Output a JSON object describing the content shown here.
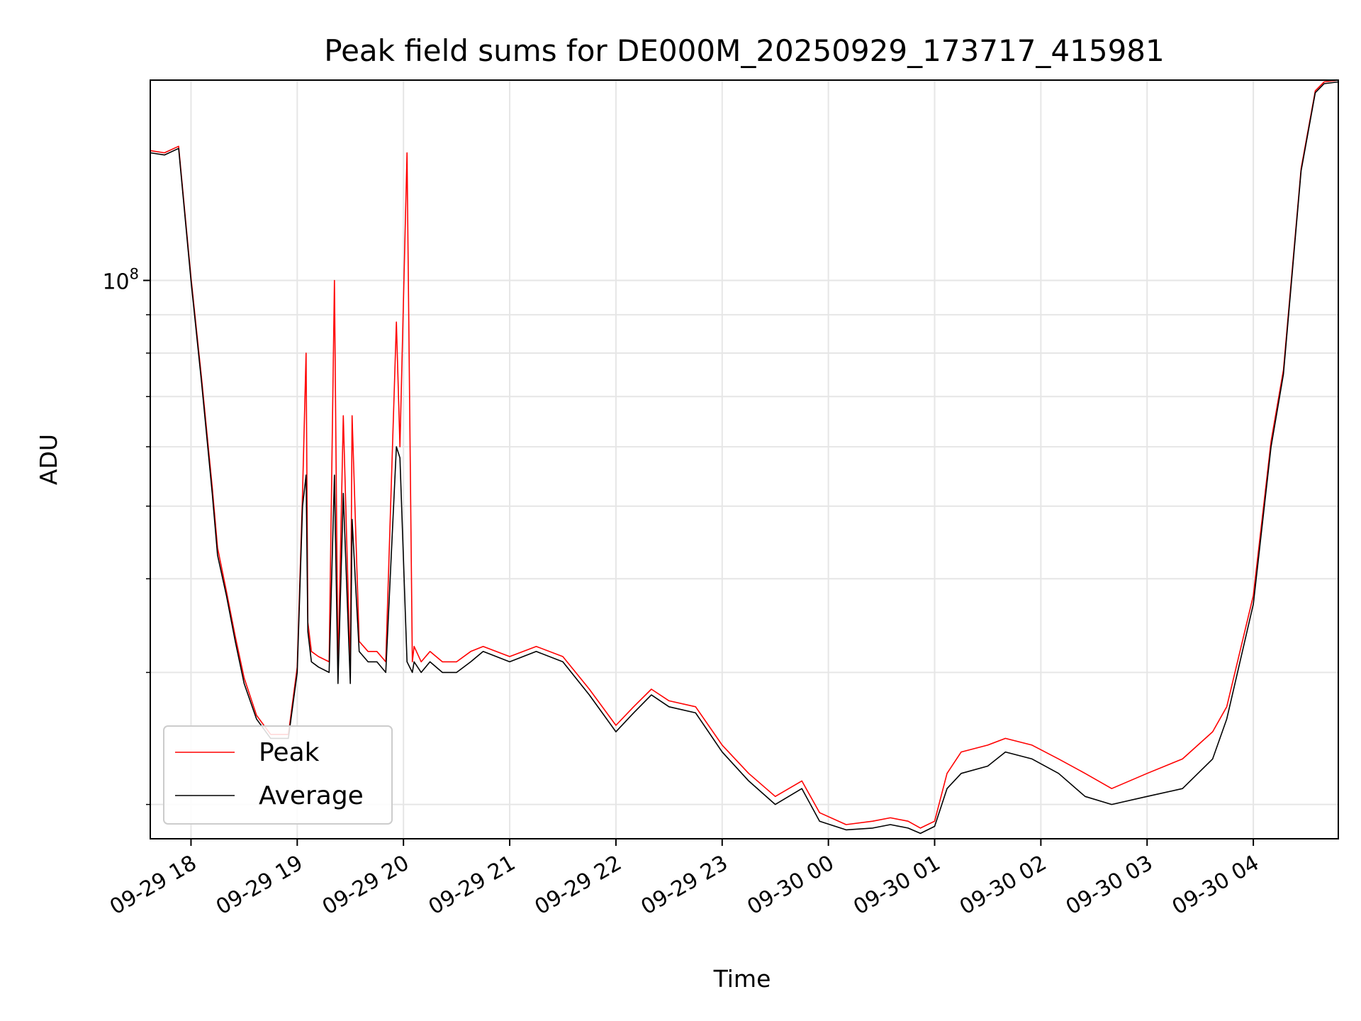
{
  "chart_data": {
    "type": "line",
    "title": "Peak field sums for DE000M_20250929_173717_415981",
    "xlabel": "Time",
    "ylabel": "ADU",
    "x_range": [
      "2025-09-29 17:37",
      "2025-09-30 04:48"
    ],
    "ylim": [
      18000000,
      185000000
    ],
    "yscale": "log",
    "y_major_tick_label": "10^8",
    "grid": true,
    "legend_position": "lower-left",
    "x_tick_labels": [
      "09-29 18",
      "09-29 19",
      "09-29 20",
      "09-29 21",
      "09-29 22",
      "09-29 23",
      "09-30 00",
      "09-30 01",
      "09-30 02",
      "09-30 03",
      "09-30 04"
    ],
    "x_ticks": [
      "2025-09-29 18:00",
      "2025-09-29 19:00",
      "2025-09-29 20:00",
      "2025-09-29 21:00",
      "2025-09-29 22:00",
      "2025-09-29 23:00",
      "2025-09-30 00:00",
      "2025-09-30 01:00",
      "2025-09-30 02:00",
      "2025-09-30 03:00",
      "2025-09-30 04:00"
    ],
    "series": [
      {
        "name": "Average",
        "color": "#000000",
        "x": [
          "2025-09-29 17:37",
          "2025-09-29 17:45",
          "2025-09-29 17:53",
          "2025-09-29 18:00",
          "2025-09-29 18:06",
          "2025-09-29 18:12",
          "2025-09-29 18:15",
          "2025-09-29 18:20",
          "2025-09-29 18:25",
          "2025-09-29 18:30",
          "2025-09-29 18:37",
          "2025-09-29 18:45",
          "2025-09-29 18:55",
          "2025-09-29 19:00",
          "2025-09-29 19:03",
          "2025-09-29 19:05",
          "2025-09-29 19:06",
          "2025-09-29 19:08",
          "2025-09-29 19:12",
          "2025-09-29 19:18",
          "2025-09-29 19:21",
          "2025-09-29 19:23",
          "2025-09-29 19:26",
          "2025-09-29 19:30",
          "2025-09-29 19:31",
          "2025-09-29 19:35",
          "2025-09-29 19:40",
          "2025-09-29 19:45",
          "2025-09-29 19:50",
          "2025-09-29 19:56",
          "2025-09-29 19:58",
          "2025-09-29 20:02",
          "2025-09-29 20:05",
          "2025-09-29 20:06",
          "2025-09-29 20:10",
          "2025-09-29 20:15",
          "2025-09-29 20:22",
          "2025-09-29 20:30",
          "2025-09-29 20:38",
          "2025-09-29 20:45",
          "2025-09-29 21:00",
          "2025-09-29 21:15",
          "2025-09-29 21:30",
          "2025-09-29 21:45",
          "2025-09-29 22:00",
          "2025-09-29 22:10",
          "2025-09-29 22:20",
          "2025-09-29 22:30",
          "2025-09-29 22:45",
          "2025-09-29 23:00",
          "2025-09-29 23:15",
          "2025-09-29 23:30",
          "2025-09-29 23:45",
          "2025-09-29 23:55",
          "2025-09-30 00:10",
          "2025-09-30 00:25",
          "2025-09-30 00:35",
          "2025-09-30 00:45",
          "2025-09-30 00:52",
          "2025-09-30 01:00",
          "2025-09-30 01:07",
          "2025-09-30 01:15",
          "2025-09-30 01:30",
          "2025-09-30 01:40",
          "2025-09-30 01:55",
          "2025-09-30 02:10",
          "2025-09-30 02:25",
          "2025-09-30 02:40",
          "2025-09-30 03:00",
          "2025-09-30 03:20",
          "2025-09-30 03:37",
          "2025-09-30 03:45",
          "2025-09-30 04:00",
          "2025-09-30 04:10",
          "2025-09-30 04:17",
          "2025-09-30 04:27",
          "2025-09-30 04:35",
          "2025-09-30 04:40",
          "2025-09-30 04:48"
        ],
        "values": [
          148000000,
          147000000,
          150000000,
          100000000,
          73000000,
          52000000,
          43000000,
          38000000,
          33000000,
          29000000,
          26000000,
          24500000,
          24500000,
          30000000,
          50000000,
          55000000,
          34000000,
          31000000,
          30500000,
          30000000,
          55000000,
          29000000,
          52000000,
          29000000,
          48000000,
          32000000,
          31000000,
          31000000,
          30000000,
          60000000,
          58000000,
          31000000,
          30000000,
          31000000,
          30000000,
          31000000,
          30000000,
          30000000,
          31000000,
          32000000,
          31000000,
          32000000,
          31000000,
          28000000,
          25000000,
          26500000,
          28000000,
          27000000,
          26500000,
          23500000,
          21500000,
          20000000,
          21000000,
          19000000,
          18500000,
          18600000,
          18800000,
          18600000,
          18300000,
          18700000,
          21000000,
          22000000,
          22500000,
          23500000,
          23000000,
          22000000,
          20500000,
          20000000,
          20500000,
          21000000,
          23000000,
          26000000,
          37000000,
          60000000,
          75000000,
          140000000,
          178000000,
          183000000,
          184000000
        ]
      },
      {
        "name": "Peak",
        "color": "#ff0000",
        "x": [
          "2025-09-29 17:37",
          "2025-09-29 17:45",
          "2025-09-29 17:53",
          "2025-09-29 18:00",
          "2025-09-29 18:06",
          "2025-09-29 18:12",
          "2025-09-29 18:15",
          "2025-09-29 18:20",
          "2025-09-29 18:25",
          "2025-09-29 18:30",
          "2025-09-29 18:37",
          "2025-09-29 18:45",
          "2025-09-29 18:55",
          "2025-09-29 19:00",
          "2025-09-29 19:03",
          "2025-09-29 19:05",
          "2025-09-29 19:06",
          "2025-09-29 19:08",
          "2025-09-29 19:12",
          "2025-09-29 19:18",
          "2025-09-29 19:21",
          "2025-09-29 19:23",
          "2025-09-29 19:26",
          "2025-09-29 19:30",
          "2025-09-29 19:31",
          "2025-09-29 19:35",
          "2025-09-29 19:40",
          "2025-09-29 19:45",
          "2025-09-29 19:50",
          "2025-09-29 19:56",
          "2025-09-29 19:58",
          "2025-09-29 20:02",
          "2025-09-29 20:05",
          "2025-09-29 20:06",
          "2025-09-29 20:10",
          "2025-09-29 20:15",
          "2025-09-29 20:22",
          "2025-09-29 20:30",
          "2025-09-29 20:38",
          "2025-09-29 20:45",
          "2025-09-29 21:00",
          "2025-09-29 21:15",
          "2025-09-29 21:30",
          "2025-09-29 21:45",
          "2025-09-29 22:00",
          "2025-09-29 22:10",
          "2025-09-29 22:20",
          "2025-09-29 22:30",
          "2025-09-29 22:45",
          "2025-09-29 23:00",
          "2025-09-29 23:15",
          "2025-09-29 23:30",
          "2025-09-29 23:45",
          "2025-09-29 23:55",
          "2025-09-30 00:10",
          "2025-09-30 00:25",
          "2025-09-30 00:35",
          "2025-09-30 00:45",
          "2025-09-30 00:52",
          "2025-09-30 01:00",
          "2025-09-30 01:07",
          "2025-09-30 01:15",
          "2025-09-30 01:30",
          "2025-09-30 01:40",
          "2025-09-30 01:55",
          "2025-09-30 02:10",
          "2025-09-30 02:25",
          "2025-09-30 02:40",
          "2025-09-30 03:00",
          "2025-09-30 03:20",
          "2025-09-30 03:37",
          "2025-09-30 03:45",
          "2025-09-30 04:00",
          "2025-09-30 04:10",
          "2025-09-30 04:17",
          "2025-09-30 04:27",
          "2025-09-30 04:35",
          "2025-09-30 04:40",
          "2025-09-30 04:48"
        ],
        "values": [
          149000000,
          148000000,
          151000000,
          101000000,
          74000000,
          53000000,
          44000000,
          38500000,
          33500000,
          29500000,
          26300000,
          24800000,
          24800000,
          30500000,
          52000000,
          80000000,
          35000000,
          32000000,
          31500000,
          31000000,
          100000000,
          30000000,
          66000000,
          30000000,
          66000000,
          33000000,
          32000000,
          32000000,
          31000000,
          88000000,
          60000000,
          148000000,
          31000000,
          32500000,
          31000000,
          32000000,
          31000000,
          31000000,
          32000000,
          32500000,
          31500000,
          32500000,
          31500000,
          28500000,
          25500000,
          27000000,
          28500000,
          27500000,
          27000000,
          24000000,
          22000000,
          20500000,
          21500000,
          19500000,
          18800000,
          19000000,
          19200000,
          19000000,
          18600000,
          19000000,
          22000000,
          23500000,
          24000000,
          24500000,
          24000000,
          23000000,
          22000000,
          21000000,
          22000000,
          23000000,
          25000000,
          27000000,
          38000000,
          61000000,
          76000000,
          141000000,
          179000000,
          184000000,
          185000000
        ]
      }
    ]
  }
}
